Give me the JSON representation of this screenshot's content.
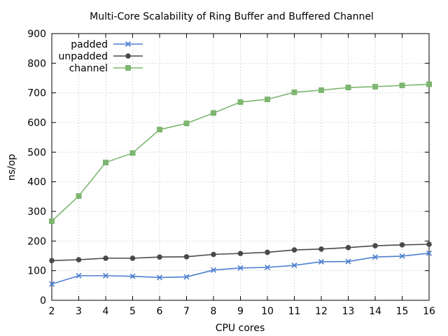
{
  "chart_data": {
    "type": "line",
    "title": "Multi-Core Scalability of Ring Buffer and Buffered Channel",
    "xlabel": "CPU cores",
    "ylabel": "ns/op",
    "xlim": [
      2,
      16
    ],
    "ylim": [
      0,
      900
    ],
    "x": [
      2,
      3,
      4,
      5,
      6,
      7,
      8,
      9,
      10,
      11,
      12,
      13,
      14,
      15,
      16
    ],
    "xticks": [
      "2",
      "3",
      "4",
      "5",
      "6",
      "7",
      "8",
      "9",
      "10",
      "11",
      "12",
      "13",
      "14",
      "15",
      "16"
    ],
    "yticks": [
      "0",
      "100",
      "200",
      "300",
      "400",
      "500",
      "600",
      "700",
      "800",
      "900"
    ],
    "grid": true,
    "legend_position": "top-left",
    "series": [
      {
        "name": "padded",
        "color": "#4d7fd0",
        "marker": "x",
        "values": [
          55,
          83,
          83,
          81,
          77,
          79,
          102,
          109,
          111,
          118,
          130,
          131,
          146,
          149,
          159
        ]
      },
      {
        "name": "unpadded",
        "color": "#4a4a4a",
        "marker": "circle",
        "values": [
          134,
          137,
          142,
          142,
          146,
          147,
          155,
          158,
          162,
          170,
          173,
          178,
          184,
          187,
          189
        ]
      },
      {
        "name": "channel",
        "color": "#7cb66f",
        "marker": "square",
        "values": [
          267,
          352,
          465,
          497,
          576,
          597,
          632,
          669,
          678,
          702,
          709,
          718,
          721,
          725,
          729
        ]
      }
    ]
  }
}
